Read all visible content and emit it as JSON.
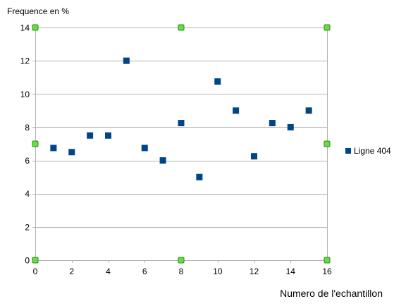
{
  "chart_data": {
    "type": "scatter",
    "title": "",
    "xlabel": "Numero de l'echantillon",
    "ylabel": "Frequence en %",
    "xlim": [
      0,
      16
    ],
    "ylim": [
      0,
      14
    ],
    "x_ticks": [
      0,
      2,
      4,
      6,
      8,
      10,
      12,
      14,
      16
    ],
    "y_ticks": [
      0,
      2,
      4,
      6,
      8,
      10,
      12,
      14
    ],
    "grid": "horizontal",
    "legend_position": "right",
    "series": [
      {
        "name": "Ligne 404",
        "color": "#004586",
        "marker": "square",
        "x": [
          1,
          2,
          3,
          4,
          5,
          6,
          7,
          8,
          9,
          10,
          11,
          12,
          13,
          14,
          15
        ],
        "y": [
          6.75,
          6.5,
          7.5,
          7.5,
          12,
          6.75,
          6,
          8.25,
          5,
          10.75,
          9,
          6.25,
          8.25,
          8,
          9
        ]
      }
    ],
    "selection_handles": {
      "color": "#66dd44",
      "shape": "square",
      "x": [
        0,
        8,
        16,
        0,
        16,
        0,
        8,
        16
      ],
      "y": [
        14,
        14,
        14,
        7,
        7,
        0,
        0,
        0
      ]
    }
  }
}
